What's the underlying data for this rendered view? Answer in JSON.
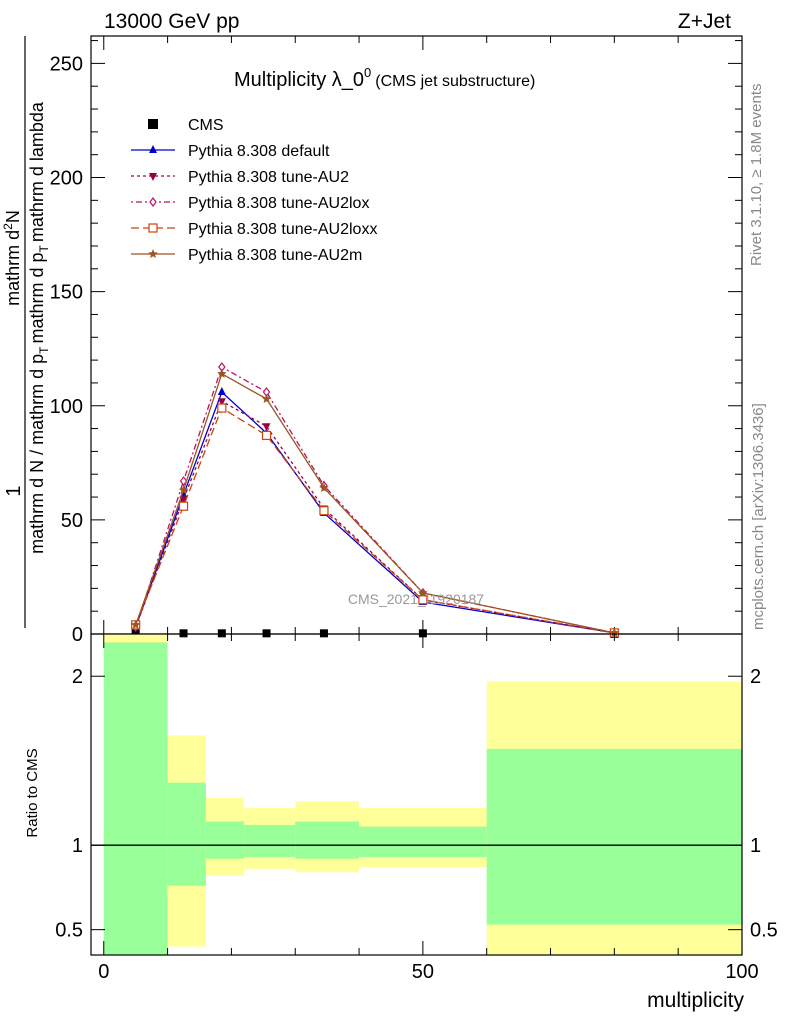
{
  "header": {
    "energy_label": "13000 GeV pp",
    "process_label": "Z+Jet"
  },
  "side_labels": {
    "rivet": "Rivet 3.1.10, ≥ 1.8M events",
    "mcplots": "mcplots.cern.ch [arXiv:1306.3436]"
  },
  "watermark": "CMS_2021_I1920187",
  "chart_data": [
    {
      "type": "line",
      "title_main": "Multiplicity λ_0",
      "title_sup": "0",
      "title_extra": "(CMS jet substructure)",
      "ylabel_num": "1",
      "ylabel_den": "mathrm d N / mathrm d p",
      "ylabel_sub": "T",
      "ylabel_tail": "mathrm d p",
      "ylabel_tail_sub": "T",
      "ylabel_tail2": "mathrm d lambda",
      "ylabel_numer": "mathrm d",
      "ylabel_numer_sup": "2",
      "ylabel_numer_tail": "N",
      "xlim": [
        0,
        100
      ],
      "ylim": [
        0,
        262
      ],
      "y_ticks": [
        0,
        50,
        100,
        150,
        200,
        250
      ],
      "y_tick_labels": [
        "0",
        "50",
        "100",
        "150",
        "200",
        "250"
      ],
      "legend": {
        "placement": "top-left"
      },
      "series": [
        {
          "name": "CMS",
          "color": "#000000",
          "marker": "square",
          "x": [
            5,
            12.5,
            18.5,
            25.5,
            34.5,
            50,
            80
          ],
          "y": [
            0.3,
            0.3,
            0.3,
            0.3,
            0.3,
            0.3,
            0.0
          ]
        },
        {
          "name": "Pythia 8.308 default",
          "color": "#0000cc",
          "marker": "triangle-up",
          "dash": "",
          "x": [
            5,
            12.5,
            18.5,
            25.5,
            34.5,
            50,
            80
          ],
          "y": [
            3,
            61,
            106,
            88,
            53,
            14,
            0.5
          ]
        },
        {
          "name": "Pythia 8.308 tune-AU2",
          "color": "#990044",
          "marker": "triangle-down",
          "dash": "3,3",
          "x": [
            5,
            12.5,
            18.5,
            25.5,
            34.5,
            50,
            80
          ],
          "y": [
            3,
            59,
            102,
            91,
            55,
            15,
            0.5
          ]
        },
        {
          "name": "Pythia 8.308 tune-AU2lox",
          "color": "#bb1166",
          "marker": "diamond-open",
          "dash": "2,3,6,3",
          "x": [
            5,
            12.5,
            18.5,
            25.5,
            34.5,
            50,
            80
          ],
          "y": [
            3,
            67,
            117,
            106,
            65,
            18,
            0.5
          ]
        },
        {
          "name": "Pythia 8.308 tune-AU2loxx",
          "color": "#cc4411",
          "marker": "square-open",
          "dash": "8,4",
          "x": [
            5,
            12.5,
            18.5,
            25.5,
            34.5,
            50,
            80
          ],
          "y": [
            4,
            56,
            99,
            87,
            54,
            15,
            0.5
          ]
        },
        {
          "name": "Pythia 8.308 tune-AU2m",
          "color": "#995522",
          "marker": "star",
          "dash": "",
          "x": [
            5,
            12.5,
            18.5,
            25.5,
            34.5,
            50,
            80
          ],
          "y": [
            4,
            63,
            114,
            103,
            64,
            18,
            0.5
          ]
        }
      ]
    },
    {
      "type": "area",
      "ylabel": "Ratio to CMS",
      "xlabel": "multiplicity",
      "xlim": [
        -2,
        100
      ],
      "ylim": [
        0.35,
        2.25
      ],
      "x_ticks": [
        0,
        50,
        100
      ],
      "x_tick_labels": [
        "0",
        "50",
        "100"
      ],
      "y_ticks": [
        0.5,
        1,
        2
      ],
      "y_tick_labels": [
        "0.5",
        "1",
        "2"
      ],
      "reference_line": 1,
      "bands": [
        {
          "x0": 0,
          "x1": 10,
          "outer_low": 0.35,
          "outer_high": 2.25,
          "inner_low": 0.35,
          "inner_high": 2.2
        },
        {
          "x0": 10,
          "x1": 16,
          "outer_low": 0.4,
          "outer_high": 1.65,
          "inner_low": 0.76,
          "inner_high": 1.37
        },
        {
          "x0": 16,
          "x1": 22,
          "outer_low": 0.82,
          "outer_high": 1.28,
          "inner_low": 0.92,
          "inner_high": 1.14
        },
        {
          "x0": 22,
          "x1": 30,
          "outer_low": 0.86,
          "outer_high": 1.22,
          "inner_low": 0.93,
          "inner_high": 1.12
        },
        {
          "x0": 30,
          "x1": 40,
          "outer_low": 0.84,
          "outer_high": 1.26,
          "inner_low": 0.92,
          "inner_high": 1.14
        },
        {
          "x0": 40,
          "x1": 60,
          "outer_low": 0.87,
          "outer_high": 1.22,
          "inner_low": 0.93,
          "inner_high": 1.11
        },
        {
          "x0": 60,
          "x1": 100,
          "outer_low": 0.35,
          "outer_high": 1.97,
          "inner_low": 0.53,
          "inner_high": 1.57
        }
      ],
      "colors": {
        "outer": "#ffff99",
        "inner": "#99ff99"
      }
    }
  ]
}
